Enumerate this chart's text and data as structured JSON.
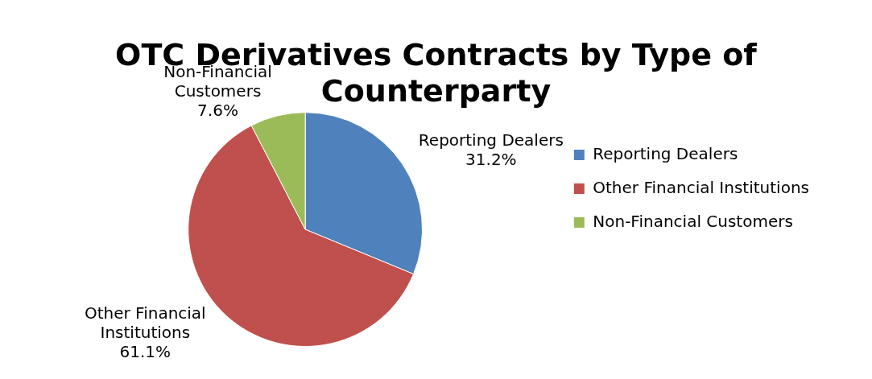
{
  "chart_data": {
    "type": "pie",
    "title": "OTC Derivatives Contracts by Type of Counterparty",
    "categories": [
      "Reporting Dealers",
      "Other Financial Institutions",
      "Non-Financial Customers"
    ],
    "values": [
      31.2,
      61.1,
      7.6
    ],
    "value_labels": [
      "31.2%",
      "61.1%",
      "7.6%"
    ],
    "colors": [
      "#4f81bd",
      "#c0504d",
      "#9bbb59"
    ],
    "legend": "right"
  }
}
